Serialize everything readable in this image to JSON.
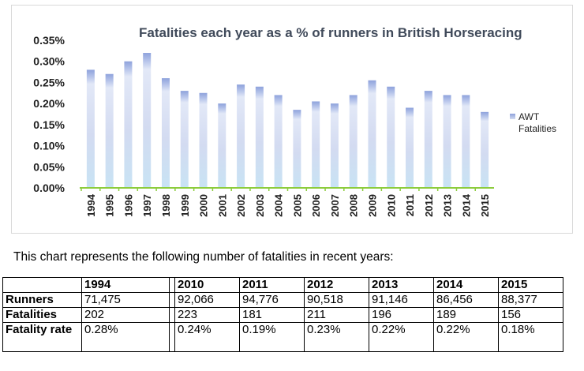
{
  "chart_data": {
    "type": "bar",
    "title": "Fatalities each year as a % of runners in British Horseracing",
    "categories": [
      "1994",
      "1995",
      "1996",
      "1997",
      "1998",
      "1999",
      "2000",
      "2001",
      "2002",
      "2003",
      "2004",
      "2005",
      "2006",
      "2007",
      "2008",
      "2009",
      "2010",
      "2011",
      "2012",
      "2013",
      "2014",
      "2015"
    ],
    "series": [
      {
        "name": "AWT Fatalities",
        "values": [
          0.28,
          0.27,
          0.3,
          0.32,
          0.26,
          0.23,
          0.225,
          0.2,
          0.245,
          0.24,
          0.22,
          0.185,
          0.205,
          0.2,
          0.22,
          0.255,
          0.24,
          0.19,
          0.23,
          0.22,
          0.22,
          0.18
        ]
      }
    ],
    "yticks": [
      "0.00%",
      "0.05%",
      "0.10%",
      "0.15%",
      "0.20%",
      "0.25%",
      "0.30%",
      "0.35%"
    ],
    "ylim": [
      0,
      0.35
    ],
    "xlabel": "",
    "ylabel": "",
    "legend": {
      "label": "AWT Fatalities",
      "position": "right"
    }
  },
  "caption": "This chart represents the following number of fatalities in recent years:",
  "table": {
    "years": [
      "1994",
      "2010",
      "2011",
      "2012",
      "2013",
      "2014",
      "2015"
    ],
    "rows": [
      {
        "label": "Runners",
        "values": [
          "71,475",
          "92,066",
          "94,776",
          "90,518",
          "91,146",
          "86,456",
          "88,377"
        ]
      },
      {
        "label": "Fatalities",
        "values": [
          "202",
          "223",
          "181",
          "211",
          "196",
          "189",
          "156"
        ]
      },
      {
        "label": "Fatality rate",
        "values": [
          "0.28%",
          "0.24%",
          "0.19%",
          "0.23%",
          "0.22%",
          "0.22%",
          "0.18%"
        ]
      }
    ]
  },
  "colors": {
    "bar_top": "#8ea2dc",
    "bar_mid": "#d3dbf1",
    "bar_bottom": "#cfe6f5",
    "axis": "#8ccc3c",
    "title": "#404a5a"
  }
}
